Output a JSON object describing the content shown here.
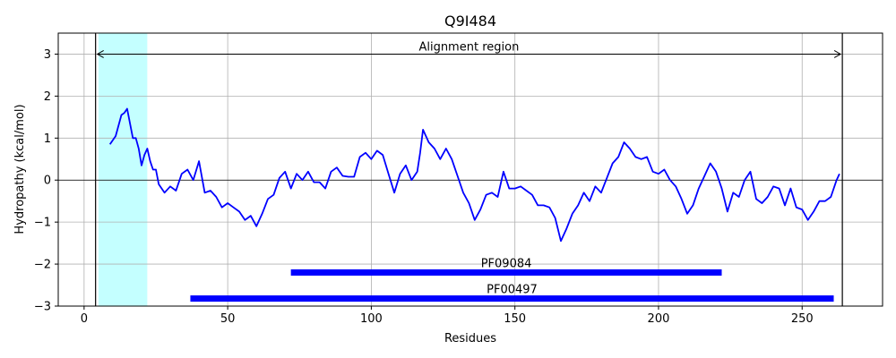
{
  "chart_data": {
    "type": "line",
    "title": "Q9I484",
    "xlabel": "Residues",
    "ylabel": "Hydropathy (kcal/mol)",
    "xlim": [
      -9,
      278
    ],
    "ylim": [
      -3,
      3.5
    ],
    "xticks": [
      0,
      50,
      100,
      150,
      200,
      250
    ],
    "yticks": [
      -3,
      -2,
      -1,
      0,
      1,
      2,
      3
    ],
    "xtick_labels": [
      "0",
      "50",
      "100",
      "150",
      "200",
      "250"
    ],
    "ytick_labels": [
      "−3",
      "−2",
      "−1",
      "0",
      "1",
      "2",
      "3"
    ],
    "grid": true,
    "zero_line": 0,
    "highlight_region": {
      "x": [
        5,
        22
      ],
      "color": "#c4ffff"
    },
    "alignment_region": {
      "x": [
        4,
        264
      ],
      "label": "Alignment region",
      "y": 3
    },
    "domains": [
      {
        "name": "PF09084",
        "x": [
          72,
          222
        ],
        "y": -2.2
      },
      {
        "name": "PF00497",
        "x": [
          37,
          261
        ],
        "y": -2.82
      }
    ],
    "series": [
      {
        "color": "#0000ff",
        "x": [
          9,
          11,
          13,
          14,
          15,
          16,
          17,
          18,
          19,
          20,
          21,
          22,
          23,
          24,
          25,
          26,
          28,
          30,
          32,
          34,
          36,
          38,
          40,
          42,
          44,
          46,
          48,
          50,
          52,
          54,
          56,
          58,
          60,
          62,
          64,
          66,
          68,
          70,
          72,
          74,
          76,
          78,
          80,
          82,
          84,
          86,
          88,
          90,
          92,
          94,
          96,
          98,
          100,
          102,
          104,
          106,
          108,
          110,
          112,
          114,
          116,
          117,
          118,
          120,
          122,
          124,
          126,
          128,
          130,
          132,
          134,
          136,
          138,
          140,
          142,
          144,
          146,
          148,
          150,
          152,
          154,
          156,
          158,
          160,
          162,
          164,
          166,
          168,
          170,
          172,
          174,
          176,
          178,
          180,
          182,
          184,
          186,
          188,
          190,
          192,
          194,
          196,
          198,
          200,
          202,
          204,
          206,
          208,
          210,
          212,
          214,
          216,
          218,
          220,
          222,
          224,
          226,
          228,
          230,
          232,
          234,
          236,
          238,
          240,
          242,
          244,
          246,
          248,
          250,
          252,
          254,
          256,
          258,
          260,
          262,
          263
        ],
        "values": [
          0.85,
          1.05,
          1.55,
          1.6,
          1.7,
          1.35,
          1.0,
          1.0,
          0.75,
          0.35,
          0.6,
          0.75,
          0.45,
          0.25,
          0.25,
          -0.1,
          -0.3,
          -0.15,
          -0.25,
          0.15,
          0.25,
          0.0,
          0.45,
          -0.3,
          -0.25,
          -0.4,
          -0.65,
          -0.55,
          -0.65,
          -0.75,
          -0.95,
          -0.85,
          -1.1,
          -0.8,
          -0.45,
          -0.35,
          0.05,
          0.2,
          -0.2,
          0.15,
          0.0,
          0.2,
          -0.05,
          -0.05,
          -0.2,
          0.2,
          0.3,
          0.1,
          0.08,
          0.08,
          0.55,
          0.65,
          0.5,
          0.7,
          0.6,
          0.15,
          -0.3,
          0.15,
          0.35,
          0.0,
          0.2,
          0.65,
          1.2,
          0.9,
          0.75,
          0.5,
          0.75,
          0.5,
          0.1,
          -0.3,
          -0.55,
          -0.95,
          -0.7,
          -0.35,
          -0.3,
          -0.4,
          0.2,
          -0.2,
          -0.2,
          -0.15,
          -0.25,
          -0.35,
          -0.6,
          -0.6,
          -0.65,
          -0.9,
          -1.45,
          -1.15,
          -0.8,
          -0.6,
          -0.3,
          -0.5,
          -0.15,
          -0.3,
          0.05,
          0.4,
          0.55,
          0.9,
          0.75,
          0.55,
          0.5,
          0.55,
          0.2,
          0.15,
          0.25,
          0.0,
          -0.15,
          -0.45,
          -0.8,
          -0.6,
          -0.2,
          0.1,
          0.4,
          0.2,
          -0.2,
          -0.75,
          -0.3,
          -0.4,
          0.0,
          0.2,
          -0.45,
          -0.55,
          -0.4,
          -0.15,
          -0.2,
          -0.6,
          -0.2,
          -0.65,
          -0.7,
          -0.95,
          -0.75,
          -0.5,
          -0.5,
          -0.4,
          0.0,
          0.15
        ]
      }
    ]
  }
}
